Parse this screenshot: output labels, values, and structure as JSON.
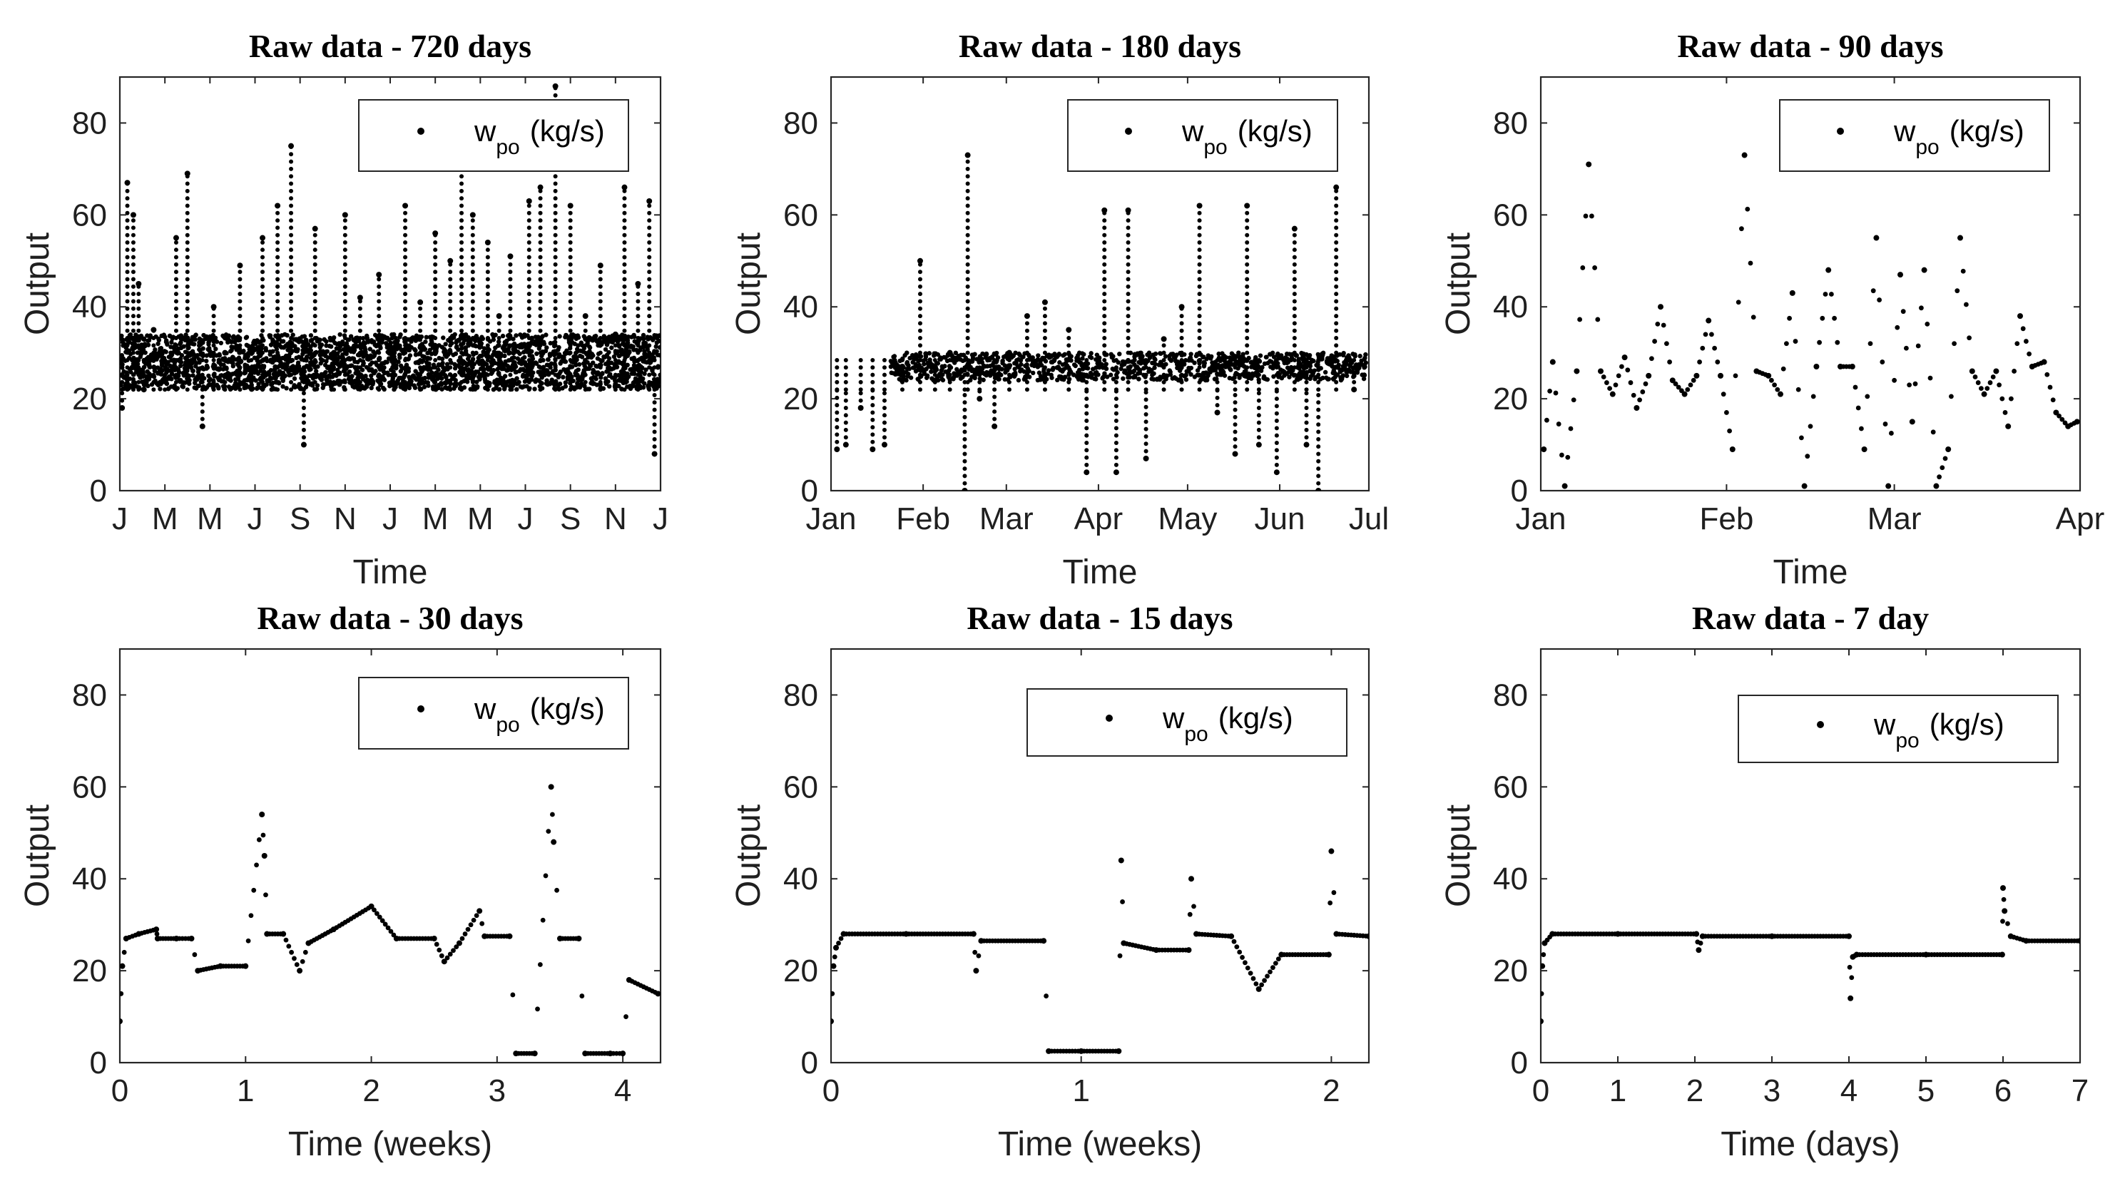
{
  "chart_data": [
    {
      "type": "scatter",
      "title": "Raw data - 720 days",
      "xlabel": "Time",
      "ylabel": "Output",
      "ylim": [
        0,
        90
      ],
      "yticks": [
        0,
        20,
        40,
        60,
        80
      ],
      "xlim": [
        0,
        720
      ],
      "xticks": [
        0,
        60,
        120,
        180,
        240,
        300,
        360,
        420,
        480,
        540,
        600,
        660,
        720
      ],
      "xtick_labels": [
        "J",
        "M",
        "M",
        "J",
        "S",
        "N",
        "J",
        "M",
        "M",
        "J",
        "S",
        "N",
        "J"
      ],
      "grid": false,
      "legend_position": "top-right",
      "series": [
        {
          "name": "w",
          "name_subscript": "po",
          "name_suffix": "(kg/s)",
          "marker": "dot",
          "color": "#000000",
          "pattern": "dense",
          "x": [
            3,
            10,
            18,
            25,
            32,
            45,
            60,
            75,
            90,
            110,
            125,
            140,
            160,
            175,
            190,
            210,
            228,
            245,
            260,
            285,
            300,
            320,
            345,
            365,
            380,
            400,
            420,
            440,
            455,
            470,
            490,
            505,
            520,
            545,
            560,
            580,
            600,
            620,
            640,
            660,
            672,
            690,
            705,
            712
          ],
          "y": [
            18,
            67,
            60,
            45,
            22,
            35,
            28,
            55,
            69,
            14,
            40,
            30,
            49,
            24,
            55,
            62,
            75,
            10,
            57,
            30,
            60,
            42,
            47,
            30,
            62,
            41,
            56,
            50,
            71,
            60,
            54,
            38,
            51,
            63,
            66,
            88,
            62,
            38,
            49,
            34,
            66,
            45,
            63,
            8
          ],
          "band": {
            "x_from": 0,
            "x_to": 720,
            "y_low": 22,
            "y_high": 34
          }
        }
      ]
    },
    {
      "type": "scatter",
      "title": "Raw data - 180 days",
      "xlabel": "Time",
      "ylabel": "Output",
      "ylim": [
        0,
        90
      ],
      "yticks": [
        0,
        20,
        40,
        60,
        80
      ],
      "xlim": [
        0,
        181
      ],
      "xticks": [
        0,
        31,
        59,
        90,
        120,
        151,
        181
      ],
      "xtick_labels": [
        "Jan",
        "Feb",
        "Mar",
        "Apr",
        "May",
        "Jun",
        "Jul"
      ],
      "grid": false,
      "legend_position": "top-right",
      "series": [
        {
          "name": "w",
          "name_subscript": "po",
          "name_suffix": "(kg/s)",
          "marker": "dot",
          "color": "#000000",
          "pattern": "dense",
          "x": [
            2,
            5,
            10,
            14,
            18,
            24,
            30,
            35,
            40,
            45,
            46,
            50,
            55,
            60,
            66,
            72,
            80,
            86,
            92,
            96,
            100,
            106,
            112,
            118,
            124,
            130,
            136,
            140,
            144,
            150,
            156,
            160,
            164,
            170,
            176
          ],
          "y": [
            9,
            10,
            18,
            9,
            10,
            27,
            50,
            24,
            30,
            0,
            73,
            20,
            14,
            30,
            38,
            41,
            35,
            4,
            61,
            4,
            61,
            7,
            33,
            40,
            62,
            17,
            8,
            62,
            10,
            4,
            57,
            10,
            0,
            66,
            22
          ],
          "band": {
            "x_from": 20,
            "x_to": 180,
            "y_low": 24,
            "y_high": 30
          }
        }
      ]
    },
    {
      "type": "scatter",
      "title": "Raw data - 90 days",
      "xlabel": "Time",
      "ylabel": "Output",
      "ylim": [
        0,
        90
      ],
      "yticks": [
        0,
        20,
        40,
        60,
        80
      ],
      "xlim": [
        0,
        90
      ],
      "xticks": [
        0,
        31,
        59,
        90
      ],
      "xtick_labels": [
        "Jan",
        "Feb",
        "Mar",
        "Apr"
      ],
      "grid": false,
      "legend_position": "top-right",
      "series": [
        {
          "name": "w",
          "name_subscript": "po",
          "name_suffix": "(kg/s)",
          "marker": "dot",
          "color": "#000000",
          "pattern": "steps",
          "x": [
            0.5,
            2,
            4,
            6,
            8,
            10,
            12,
            14,
            16,
            18,
            20,
            22,
            24,
            26,
            28,
            30,
            32,
            34,
            36,
            38,
            40,
            42,
            44,
            46,
            48,
            50,
            52,
            54,
            56,
            58,
            60,
            62,
            64,
            66,
            68,
            70,
            72,
            74,
            76,
            78,
            80,
            82,
            84,
            86,
            88,
            89.5
          ],
          "y": [
            9,
            28,
            1,
            26,
            71,
            26,
            21,
            29,
            18,
            25,
            40,
            24,
            21,
            25,
            37,
            25,
            9,
            73,
            26,
            25,
            21,
            43,
            1,
            27,
            48,
            27,
            27,
            9,
            55,
            1,
            47,
            15,
            48,
            1,
            9,
            55,
            26,
            21,
            26,
            14,
            38,
            27,
            28,
            17,
            14,
            15
          ]
        }
      ]
    },
    {
      "type": "scatter",
      "title": "Raw data - 30 days",
      "xlabel": "Time (weeks)",
      "ylabel": "Output",
      "ylim": [
        0,
        90
      ],
      "yticks": [
        0,
        20,
        40,
        60,
        80
      ],
      "xlim": [
        0,
        4.3
      ],
      "xticks": [
        0,
        1,
        2,
        3,
        4
      ],
      "xtick_labels": [
        "0",
        "1",
        "2",
        "3",
        "4"
      ],
      "grid": false,
      "legend_position": "top-right",
      "series": [
        {
          "name": "w",
          "name_subscript": "po",
          "name_suffix": "(kg/s)",
          "marker": "dot",
          "color": "#000000",
          "pattern": "steps",
          "x": [
            0.0,
            0.02,
            0.05,
            0.15,
            0.29,
            0.3,
            0.45,
            0.57,
            0.62,
            0.8,
            1.0,
            1.13,
            1.15,
            1.17,
            1.3,
            1.43,
            1.5,
            1.7,
            2.0,
            2.2,
            2.5,
            2.58,
            2.7,
            2.86,
            2.9,
            3.1,
            3.15,
            3.3,
            3.43,
            3.45,
            3.5,
            3.65,
            3.7,
            3.9,
            4.0,
            4.05,
            4.28
          ],
          "y": [
            9,
            21,
            27,
            28,
            29,
            27,
            27,
            27,
            20,
            21,
            21,
            54,
            45,
            28,
            28,
            20,
            26,
            29,
            34,
            27,
            27,
            22,
            26,
            33,
            27.5,
            27.5,
            2,
            2,
            60,
            48,
            27,
            27,
            2,
            2,
            2,
            18,
            15
          ]
        }
      ]
    },
    {
      "type": "scatter",
      "title": "Raw data - 15 days",
      "xlabel": "Time (weeks)",
      "ylabel": "Output",
      "ylim": [
        0,
        90
      ],
      "yticks": [
        0,
        20,
        40,
        60,
        80
      ],
      "xlim": [
        0,
        2.15
      ],
      "xticks": [
        0,
        1,
        2
      ],
      "xtick_labels": [
        "0",
        "1",
        "2"
      ],
      "grid": false,
      "legend_position": "top-right",
      "series": [
        {
          "name": "w",
          "name_subscript": "po",
          "name_suffix": "(kg/s)",
          "marker": "dot",
          "color": "#000000",
          "pattern": "steps",
          "x": [
            0.0,
            0.01,
            0.02,
            0.05,
            0.3,
            0.57,
            0.58,
            0.6,
            0.85,
            0.87,
            1.0,
            1.15,
            1.16,
            1.17,
            1.3,
            1.43,
            1.44,
            1.46,
            1.6,
            1.71,
            1.8,
            1.99,
            2.0,
            2.02,
            2.15
          ],
          "y": [
            9,
            21,
            25,
            28,
            28,
            28,
            20,
            26.5,
            26.5,
            2.5,
            2.5,
            2.5,
            44,
            26,
            24.5,
            24.5,
            40,
            28,
            27.5,
            16,
            23.5,
            23.5,
            46,
            28,
            27.5
          ]
        }
      ]
    },
    {
      "type": "scatter",
      "title": "Raw data - 7 day",
      "xlabel": "Time (days)",
      "ylabel": "Output",
      "ylim": [
        0,
        90
      ],
      "yticks": [
        0,
        20,
        40,
        60,
        80
      ],
      "xlim": [
        0,
        7
      ],
      "xticks": [
        0,
        1,
        2,
        3,
        4,
        5,
        6,
        7
      ],
      "xtick_labels": [
        "0",
        "1",
        "2",
        "3",
        "4",
        "5",
        "6",
        "7"
      ],
      "grid": false,
      "legend_position": "top-right",
      "series": [
        {
          "name": "w",
          "name_subscript": "po",
          "name_suffix": "(kg/s)",
          "marker": "dot",
          "color": "#000000",
          "pattern": "steps",
          "x": [
            0.0,
            0.02,
            0.05,
            0.15,
            1.0,
            2.02,
            2.05,
            2.1,
            3.0,
            4.0,
            4.02,
            4.05,
            4.1,
            5.0,
            5.99,
            6.0,
            6.02,
            6.1,
            6.3,
            7.0
          ],
          "y": [
            9,
            21,
            26,
            28,
            28,
            28,
            24.5,
            27.5,
            27.5,
            27.5,
            14,
            23,
            23.5,
            23.5,
            23.5,
            38,
            33,
            27.5,
            26.5,
            26.5
          ]
        }
      ]
    }
  ]
}
